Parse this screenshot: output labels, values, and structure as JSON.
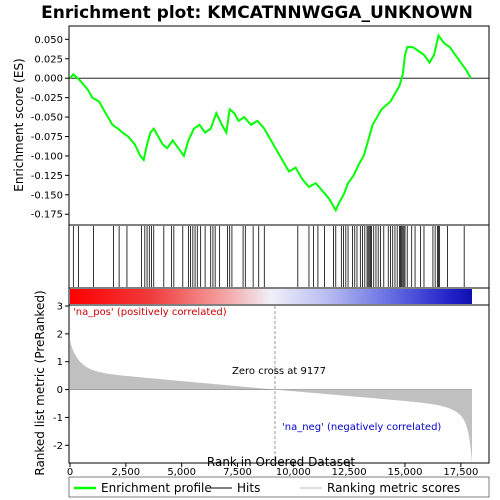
{
  "chart_data": {
    "type": "line",
    "title": "Enrichment plot: KMCATNNWGGA_UNKNOWN",
    "xlabel": "Rank in Ordered Dataset",
    "ylabel_top": "Enrichment score (ES)",
    "ylabel_bottom": "Ranked list metric (PreRanked)",
    "xlim": [
      0,
      18000
    ],
    "x_ticks": [
      0,
      2500,
      5000,
      7500,
      10000,
      12500,
      15000,
      17500
    ],
    "x_tick_labels": [
      "0",
      "2,500",
      "5,000",
      "7,500",
      "10,000",
      "12,500",
      "15,000",
      "17,500"
    ],
    "es_ylim": [
      -0.185,
      0.062
    ],
    "es_ticks": [
      0.05,
      0.025,
      0.0,
      -0.025,
      -0.05,
      -0.075,
      -0.1,
      -0.125,
      -0.15,
      -0.175
    ],
    "es_tick_labels": [
      "0.050",
      "0.025",
      "0.000",
      "-0.025",
      "-0.050",
      "-0.075",
      "-0.100",
      "-0.125",
      "-0.150",
      "-0.175"
    ],
    "metric_ylim": [
      -2.6,
      3.0
    ],
    "metric_ticks": [
      3,
      2,
      1,
      0,
      -1,
      -2
    ],
    "metric_tick_labels": [
      "3",
      "2",
      "1",
      "0",
      "-1",
      "-2"
    ],
    "enrichment_profile": [
      [
        0,
        0.0
      ],
      [
        150,
        0.005
      ],
      [
        450,
        -0.003
      ],
      [
        800,
        -0.015
      ],
      [
        1000,
        -0.025
      ],
      [
        1300,
        -0.03
      ],
      [
        1600,
        -0.045
      ],
      [
        1900,
        -0.06
      ],
      [
        2150,
        -0.065
      ],
      [
        2350,
        -0.07
      ],
      [
        2600,
        -0.075
      ],
      [
        2900,
        -0.085
      ],
      [
        3150,
        -0.1
      ],
      [
        3300,
        -0.105
      ],
      [
        3450,
        -0.085
      ],
      [
        3600,
        -0.07
      ],
      [
        3750,
        -0.065
      ],
      [
        3950,
        -0.075
      ],
      [
        4150,
        -0.085
      ],
      [
        4350,
        -0.09
      ],
      [
        4600,
        -0.08
      ],
      [
        4850,
        -0.09
      ],
      [
        5100,
        -0.1
      ],
      [
        5300,
        -0.08
      ],
      [
        5550,
        -0.065
      ],
      [
        5800,
        -0.06
      ],
      [
        6050,
        -0.07
      ],
      [
        6300,
        -0.065
      ],
      [
        6550,
        -0.045
      ],
      [
        6800,
        -0.06
      ],
      [
        7000,
        -0.07
      ],
      [
        7150,
        -0.04
      ],
      [
        7350,
        -0.045
      ],
      [
        7550,
        -0.055
      ],
      [
        7800,
        -0.05
      ],
      [
        8100,
        -0.06
      ],
      [
        8400,
        -0.055
      ],
      [
        8700,
        -0.065
      ],
      [
        9000,
        -0.08
      ],
      [
        9400,
        -0.1
      ],
      [
        9800,
        -0.12
      ],
      [
        10100,
        -0.115
      ],
      [
        10400,
        -0.13
      ],
      [
        10700,
        -0.14
      ],
      [
        11000,
        -0.135
      ],
      [
        11300,
        -0.145
      ],
      [
        11600,
        -0.155
      ],
      [
        11900,
        -0.17
      ],
      [
        12050,
        -0.16
      ],
      [
        12250,
        -0.15
      ],
      [
        12450,
        -0.135
      ],
      [
        12700,
        -0.125
      ],
      [
        12950,
        -0.11
      ],
      [
        13150,
        -0.1
      ],
      [
        13350,
        -0.08
      ],
      [
        13550,
        -0.06
      ],
      [
        13750,
        -0.05
      ],
      [
        13950,
        -0.04
      ],
      [
        14150,
        -0.035
      ],
      [
        14350,
        -0.03
      ],
      [
        14550,
        -0.02
      ],
      [
        14750,
        -0.01
      ],
      [
        14900,
        0.005
      ],
      [
        15000,
        0.03
      ],
      [
        15100,
        0.04
      ],
      [
        15350,
        0.04
      ],
      [
        15600,
        0.035
      ],
      [
        15850,
        0.03
      ],
      [
        16100,
        0.02
      ],
      [
        16300,
        0.03
      ],
      [
        16500,
        0.055
      ],
      [
        16750,
        0.045
      ],
      [
        17000,
        0.04
      ],
      [
        17250,
        0.03
      ],
      [
        17500,
        0.02
      ],
      [
        17750,
        0.01
      ],
      [
        17950,
        0.0
      ]
    ],
    "hit_ranks": [
      150,
      380,
      1050,
      1950,
      2200,
      2550,
      3200,
      3350,
      3450,
      3550,
      3650,
      3750,
      4200,
      4550,
      4650,
      5050,
      5300,
      5400,
      5500,
      5600,
      5700,
      5850,
      6050,
      6300,
      6400,
      6500,
      6700,
      7050,
      7150,
      7250,
      7750,
      7850,
      8200,
      8450,
      8700,
      10200,
      10700,
      10900,
      11100,
      11400,
      11800,
      11900,
      12150,
      12250,
      12350,
      12450,
      12650,
      12750,
      12850,
      13000,
      13100,
      13200,
      13300,
      13350,
      13400,
      13450,
      13500,
      13600,
      13700,
      13800,
      13900,
      14050,
      14250,
      14350,
      14450,
      14550,
      14650,
      14750,
      14800,
      14850,
      14900,
      14950,
      15000,
      15100,
      15300,
      15450,
      15700,
      15850,
      16250,
      16350,
      16450,
      16500,
      16550,
      16900,
      17650
    ],
    "zero_cross_rank": 9177,
    "zero_cross_label": "Zero cross at 9177",
    "pos_label": "'na_pos' (positively correlated)",
    "neg_label": "'na_neg' (negatively correlated)",
    "legend": [
      {
        "label": "Enrichment profile",
        "color": "#00ff00"
      },
      {
        "label": "Hits",
        "color": "#000000"
      },
      {
        "label": "Ranking metric scores",
        "color": "#c0c0c0"
      }
    ],
    "colors": {
      "profile": "#00ff00",
      "hits": "#000000",
      "metric_fill": "#c0c0c0",
      "pos_text": "#cc0000",
      "neg_text": "#0000cc",
      "zero_line": "#999999"
    }
  }
}
